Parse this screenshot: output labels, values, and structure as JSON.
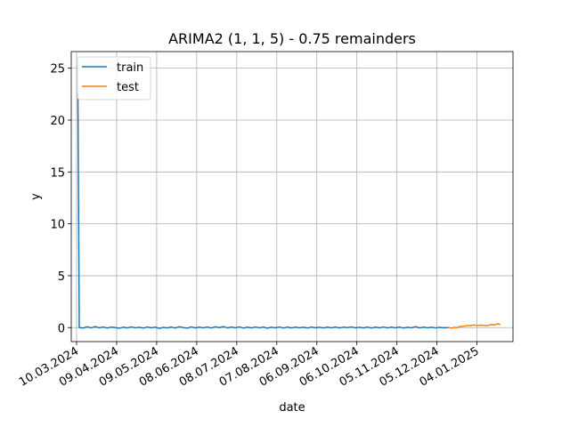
{
  "chart_data": {
    "type": "line",
    "title": "ARIMA2 (1, 1, 5) - 0.75 remainders",
    "xlabel": "date",
    "ylabel": "y",
    "x_type": "date",
    "xlim": [
      "2024-03-06",
      "2025-01-31"
    ],
    "ylim": [
      -1.35,
      26.6
    ],
    "grid": true,
    "legend_position": "upper left",
    "x_ticks": [
      {
        "date": "2024-03-10",
        "label": "10.03.2024"
      },
      {
        "date": "2024-04-09",
        "label": "09.04.2024"
      },
      {
        "date": "2024-05-09",
        "label": "09.05.2024"
      },
      {
        "date": "2024-06-08",
        "label": "08.06.2024"
      },
      {
        "date": "2024-07-08",
        "label": "08.07.2024"
      },
      {
        "date": "2024-08-07",
        "label": "07.08.2024"
      },
      {
        "date": "2024-09-06",
        "label": "06.09.2024"
      },
      {
        "date": "2024-10-06",
        "label": "06.10.2024"
      },
      {
        "date": "2024-11-05",
        "label": "05.11.2024"
      },
      {
        "date": "2024-12-05",
        "label": "05.12.2024"
      },
      {
        "date": "2025-01-04",
        "label": "04.01.2025"
      }
    ],
    "y_ticks": [
      0,
      5,
      10,
      15,
      20,
      25
    ],
    "series": [
      {
        "name": "train",
        "color": "#1f77b4",
        "points": [
          {
            "x": "2024-03-11",
            "y": 22.5
          },
          {
            "x": "2024-03-12",
            "y": 0.0
          },
          {
            "x": "2024-03-15",
            "y": -0.05
          },
          {
            "x": "2024-03-18",
            "y": 0.08
          },
          {
            "x": "2024-03-21",
            "y": -0.03
          },
          {
            "x": "2024-03-24",
            "y": 0.1
          },
          {
            "x": "2024-03-27",
            "y": -0.02
          },
          {
            "x": "2024-03-30",
            "y": 0.06
          },
          {
            "x": "2024-04-02",
            "y": -0.04
          },
          {
            "x": "2024-04-05",
            "y": 0.05
          },
          {
            "x": "2024-04-08",
            "y": 0.0
          },
          {
            "x": "2024-04-11",
            "y": -0.06
          },
          {
            "x": "2024-04-14",
            "y": 0.04
          },
          {
            "x": "2024-04-17",
            "y": -0.03
          },
          {
            "x": "2024-04-20",
            "y": 0.07
          },
          {
            "x": "2024-04-23",
            "y": -0.02
          },
          {
            "x": "2024-04-26",
            "y": 0.03
          },
          {
            "x": "2024-04-29",
            "y": -0.05
          },
          {
            "x": "2024-05-02",
            "y": 0.06
          },
          {
            "x": "2024-05-05",
            "y": -0.02
          },
          {
            "x": "2024-05-08",
            "y": 0.04
          },
          {
            "x": "2024-05-11",
            "y": -0.08
          },
          {
            "x": "2024-05-14",
            "y": 0.02
          },
          {
            "x": "2024-05-17",
            "y": -0.03
          },
          {
            "x": "2024-05-20",
            "y": 0.05
          },
          {
            "x": "2024-05-23",
            "y": -0.04
          },
          {
            "x": "2024-05-26",
            "y": 0.09
          },
          {
            "x": "2024-05-29",
            "y": 0.0
          },
          {
            "x": "2024-06-01",
            "y": -0.05
          },
          {
            "x": "2024-06-04",
            "y": 0.07
          },
          {
            "x": "2024-06-07",
            "y": -0.03
          },
          {
            "x": "2024-06-10",
            "y": 0.04
          },
          {
            "x": "2024-06-13",
            "y": -0.02
          },
          {
            "x": "2024-06-16",
            "y": 0.06
          },
          {
            "x": "2024-06-19",
            "y": -0.04
          },
          {
            "x": "2024-06-22",
            "y": 0.08
          },
          {
            "x": "2024-06-25",
            "y": 0.0
          },
          {
            "x": "2024-06-28",
            "y": 0.1
          },
          {
            "x": "2024-07-01",
            "y": -0.03
          },
          {
            "x": "2024-07-04",
            "y": 0.05
          },
          {
            "x": "2024-07-07",
            "y": -0.02
          },
          {
            "x": "2024-07-10",
            "y": 0.07
          },
          {
            "x": "2024-07-13",
            "y": -0.05
          },
          {
            "x": "2024-07-16",
            "y": 0.04
          },
          {
            "x": "2024-07-19",
            "y": -0.03
          },
          {
            "x": "2024-07-22",
            "y": 0.06
          },
          {
            "x": "2024-07-25",
            "y": -0.02
          },
          {
            "x": "2024-07-28",
            "y": 0.05
          },
          {
            "x": "2024-07-31",
            "y": -0.06
          },
          {
            "x": "2024-08-03",
            "y": 0.03
          },
          {
            "x": "2024-08-06",
            "y": -0.02
          },
          {
            "x": "2024-08-09",
            "y": 0.06
          },
          {
            "x": "2024-08-12",
            "y": -0.04
          },
          {
            "x": "2024-08-15",
            "y": 0.05
          },
          {
            "x": "2024-08-18",
            "y": -0.03
          },
          {
            "x": "2024-08-21",
            "y": 0.04
          },
          {
            "x": "2024-08-24",
            "y": -0.02
          },
          {
            "x": "2024-08-27",
            "y": 0.03
          },
          {
            "x": "2024-08-30",
            "y": -0.04
          },
          {
            "x": "2024-09-02",
            "y": 0.05
          },
          {
            "x": "2024-09-05",
            "y": -0.02
          },
          {
            "x": "2024-09-08",
            "y": 0.03
          },
          {
            "x": "2024-09-11",
            "y": -0.03
          },
          {
            "x": "2024-09-14",
            "y": 0.04
          },
          {
            "x": "2024-09-17",
            "y": -0.02
          },
          {
            "x": "2024-09-20",
            "y": 0.05
          },
          {
            "x": "2024-09-23",
            "y": -0.03
          },
          {
            "x": "2024-09-26",
            "y": 0.04
          },
          {
            "x": "2024-09-29",
            "y": 0.0
          },
          {
            "x": "2024-10-02",
            "y": 0.06
          },
          {
            "x": "2024-10-05",
            "y": -0.02
          },
          {
            "x": "2024-10-08",
            "y": 0.03
          },
          {
            "x": "2024-10-11",
            "y": -0.03
          },
          {
            "x": "2024-10-14",
            "y": 0.05
          },
          {
            "x": "2024-10-17",
            "y": -0.04
          },
          {
            "x": "2024-10-20",
            "y": 0.04
          },
          {
            "x": "2024-10-23",
            "y": -0.02
          },
          {
            "x": "2024-10-26",
            "y": 0.06
          },
          {
            "x": "2024-10-29",
            "y": -0.03
          },
          {
            "x": "2024-11-01",
            "y": 0.04
          },
          {
            "x": "2024-11-04",
            "y": -0.02
          },
          {
            "x": "2024-11-07",
            "y": 0.05
          },
          {
            "x": "2024-11-10",
            "y": -0.04
          },
          {
            "x": "2024-11-13",
            "y": 0.03
          },
          {
            "x": "2024-11-16",
            "y": -0.02
          },
          {
            "x": "2024-11-19",
            "y": 0.09
          },
          {
            "x": "2024-11-22",
            "y": -0.03
          },
          {
            "x": "2024-11-25",
            "y": 0.04
          },
          {
            "x": "2024-11-28",
            "y": -0.02
          },
          {
            "x": "2024-12-01",
            "y": 0.03
          },
          {
            "x": "2024-12-04",
            "y": -0.03
          },
          {
            "x": "2024-12-07",
            "y": 0.02
          },
          {
            "x": "2024-12-10",
            "y": -0.02
          },
          {
            "x": "2024-12-13",
            "y": 0.0
          }
        ]
      },
      {
        "name": "test",
        "color": "#ff7f0e",
        "points": [
          {
            "x": "2024-12-14",
            "y": 0.0
          },
          {
            "x": "2024-12-16",
            "y": -0.06
          },
          {
            "x": "2024-12-18",
            "y": 0.03
          },
          {
            "x": "2024-12-20",
            "y": -0.02
          },
          {
            "x": "2024-12-22",
            "y": 0.1
          },
          {
            "x": "2024-12-24",
            "y": 0.12
          },
          {
            "x": "2024-12-26",
            "y": 0.15
          },
          {
            "x": "2024-12-28",
            "y": 0.2
          },
          {
            "x": "2024-12-30",
            "y": 0.18
          },
          {
            "x": "2025-01-01",
            "y": 0.25
          },
          {
            "x": "2025-01-03",
            "y": 0.22
          },
          {
            "x": "2025-01-05",
            "y": 0.2
          },
          {
            "x": "2025-01-07",
            "y": 0.24
          },
          {
            "x": "2025-01-09",
            "y": 0.2
          },
          {
            "x": "2025-01-11",
            "y": 0.18
          },
          {
            "x": "2025-01-13",
            "y": 0.22
          },
          {
            "x": "2025-01-15",
            "y": 0.3
          },
          {
            "x": "2025-01-17",
            "y": 0.26
          },
          {
            "x": "2025-01-19",
            "y": 0.35
          },
          {
            "x": "2025-01-21",
            "y": 0.32
          }
        ]
      }
    ]
  }
}
